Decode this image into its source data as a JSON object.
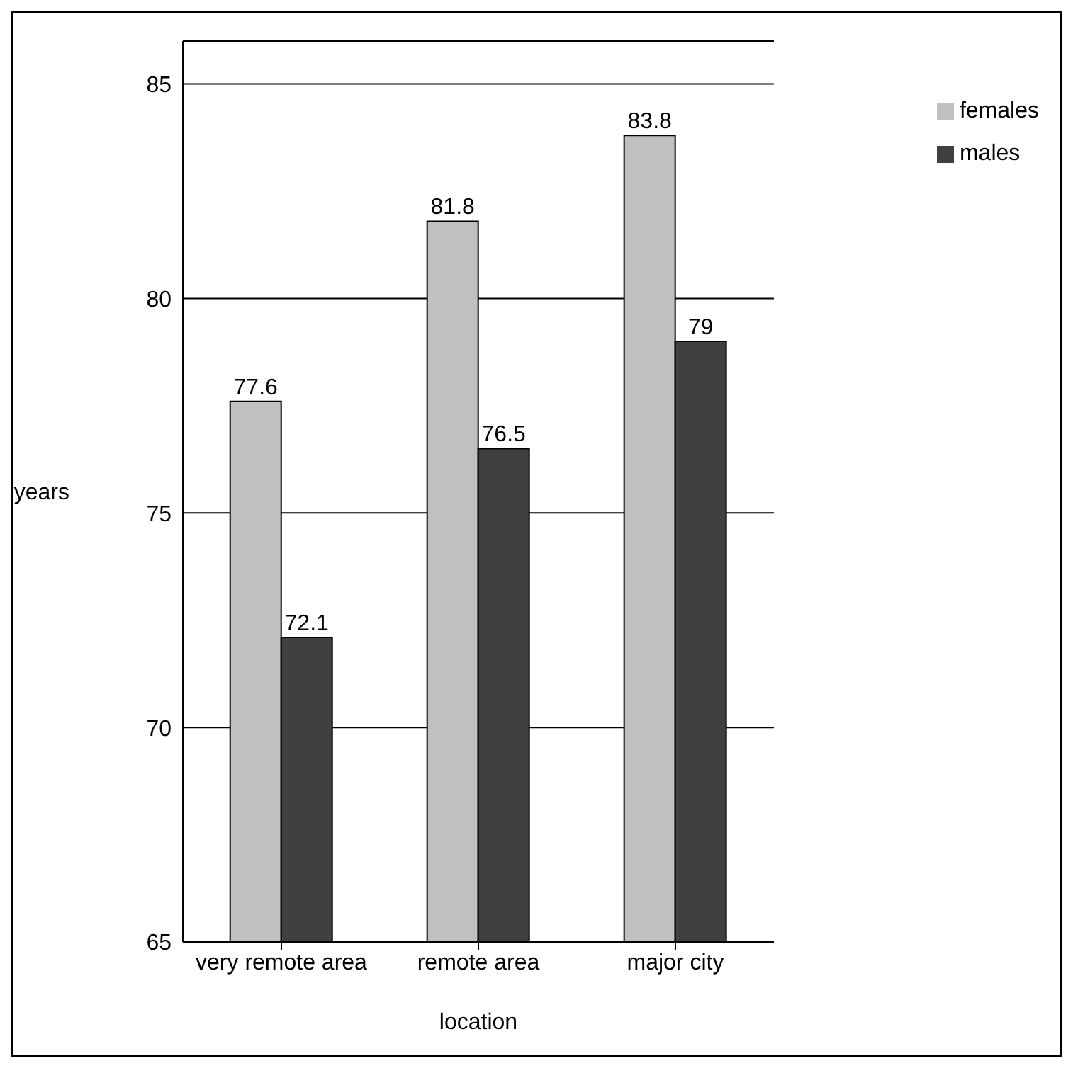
{
  "chart_data": {
    "type": "bar",
    "xlabel": "location",
    "ylabel": "years",
    "categories": [
      "very remote area",
      "remote area",
      "major city"
    ],
    "series": [
      {
        "name": "females",
        "color": "#c0c0c0",
        "values": [
          77.6,
          81.8,
          83.8
        ]
      },
      {
        "name": "males",
        "color": "#404040",
        "values": [
          72.1,
          76.5,
          79
        ]
      }
    ],
    "ylim": [
      65,
      86
    ],
    "yticks": [
      65,
      70,
      75,
      80,
      85
    ],
    "grid": "y",
    "legend": "top right",
    "data_labels": true
  }
}
